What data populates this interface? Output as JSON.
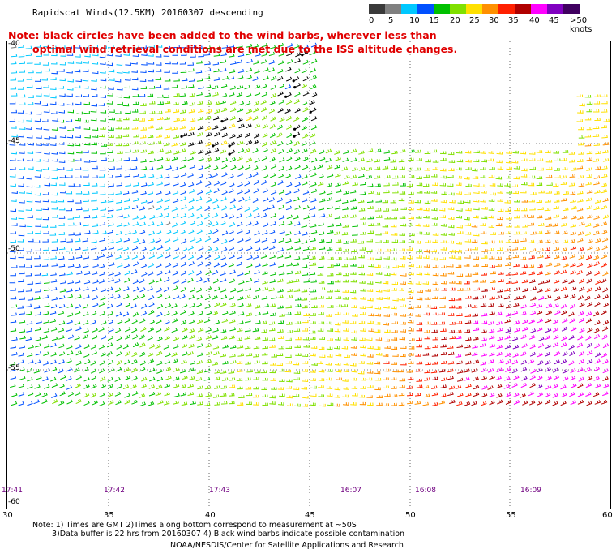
{
  "title": "Rapidscat Winds(12.5KM) 20160307 descending",
  "note_line1": "Note: black circles have been added to the wind barbs, wherever less than",
  "note_line2": "optimal wind retrieval conditions are met due to the ISS altitude changes.",
  "colorbar": {
    "labels": [
      "0",
      "5",
      "10",
      "15",
      "20",
      "25",
      "30",
      "35",
      "40",
      "45",
      ">50 knots"
    ],
    "colors": [
      "#3a3a3a",
      "#808080",
      "#00c8ff",
      "#0050ff",
      "#00c000",
      "#80e000",
      "#ffe000",
      "#ff9000",
      "#ff2000",
      "#b00000",
      "#ff00ff",
      "#8000c0",
      "#400060"
    ]
  },
  "lat_labels": [
    "-40",
    "-45",
    "-50",
    "-55",
    "-60"
  ],
  "lon_labels": [
    "30",
    "35",
    "40",
    "45",
    "50",
    "55",
    "60"
  ],
  "time_labels": [
    "17:41",
    "17:42",
    "17:43",
    "16:07",
    "16:08",
    "16:09"
  ],
  "footer": {
    "line1": "Note: 1) Times are GMT 2)Times along bottom correspond to measurement at ~50S",
    "line2": "3)Data buffer is 22 hrs from 20160307 4) Black wind barbs indicate possible contamination",
    "line3": "NOAA/NESDIS/Center for Satellite Applications and Research"
  }
}
